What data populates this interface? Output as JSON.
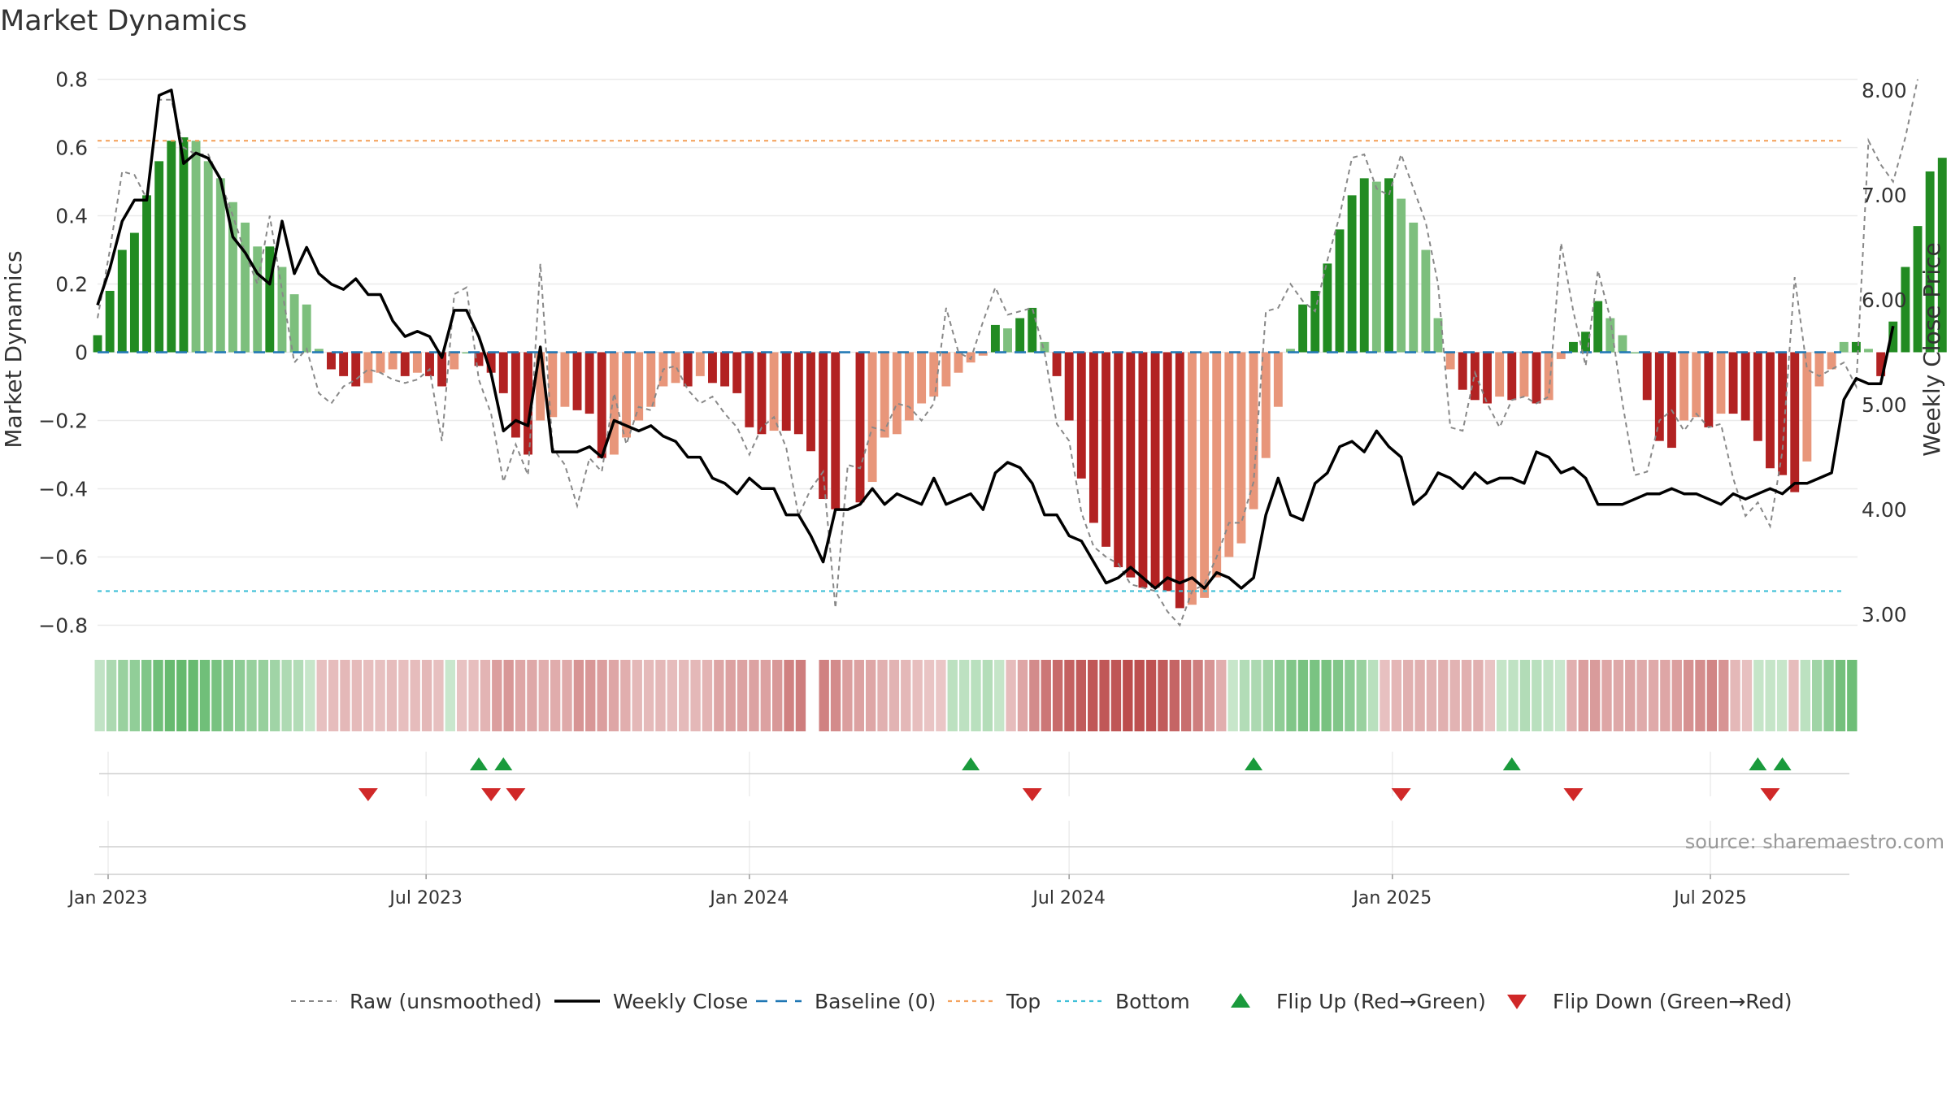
{
  "chart_data": {
    "type": "bar",
    "title": "Market Dynamics",
    "ylabel": "Market Dynamics",
    "y2label": "Weekly Close Price",
    "ylim": [
      -0.83,
      0.83
    ],
    "y2lim": [
      2.8,
      8.2
    ],
    "yticks": [
      "0.8",
      "0.6",
      "0.4",
      "0.2",
      "0",
      "−0.2",
      "−0.4",
      "−0.6",
      "−0.8"
    ],
    "ytick_values": [
      0.8,
      0.6,
      0.4,
      0.2,
      0,
      -0.2,
      -0.4,
      -0.6,
      -0.8
    ],
    "y2ticks": [
      "8.00",
      "7.00",
      "6.00",
      "5.00",
      "4.00",
      "3.00"
    ],
    "y2tick_values": [
      8,
      7,
      6,
      5,
      4,
      3
    ],
    "x_start": "2022-12-26",
    "x_end": "2025-08-25",
    "xticks": [
      "Jan 2023",
      "Jul 2023",
      "Jan 2024",
      "Jul 2024",
      "Jan 2025",
      "Jul 2025"
    ],
    "xtick_dates": [
      "2023-01-01",
      "2023-07-01",
      "2024-01-01",
      "2024-07-01",
      "2025-01-01",
      "2025-07-01"
    ],
    "top_line": 0.62,
    "bottom_line": -0.7,
    "dynamics": [
      0.05,
      0.18,
      0.3,
      0.35,
      0.46,
      0.56,
      0.62,
      0.63,
      0.62,
      0.56,
      0.51,
      0.44,
      0.38,
      0.31,
      0.31,
      0.25,
      0.17,
      0.14,
      0.01,
      -0.05,
      -0.07,
      -0.1,
      -0.09,
      -0.06,
      -0.05,
      -0.07,
      -0.06,
      -0.07,
      -0.1,
      -0.05,
      0.0,
      -0.04,
      -0.06,
      -0.12,
      -0.25,
      -0.3,
      -0.2,
      -0.19,
      -0.16,
      -0.17,
      -0.18,
      -0.31,
      -0.3,
      -0.25,
      -0.2,
      -0.16,
      -0.1,
      -0.09,
      -0.1,
      -0.07,
      -0.09,
      -0.1,
      -0.12,
      -0.22,
      -0.24,
      -0.23,
      -0.23,
      -0.24,
      -0.29,
      -0.43,
      -0.46,
      null,
      -0.44,
      -0.38,
      -0.25,
      -0.24,
      -0.2,
      -0.15,
      -0.13,
      -0.1,
      -0.06,
      -0.03,
      -0.01,
      0.08,
      0.07,
      0.1,
      0.13,
      0.03,
      -0.07,
      -0.2,
      -0.37,
      -0.5,
      -0.57,
      -0.63,
      -0.66,
      -0.69,
      -0.69,
      -0.7,
      -0.75,
      -0.74,
      -0.72,
      -0.66,
      -0.6,
      -0.56,
      -0.46,
      -0.31,
      -0.16,
      0.01,
      0.14,
      0.18,
      0.26,
      0.36,
      0.46,
      0.51,
      0.5,
      0.51,
      0.45,
      0.38,
      0.3,
      0.1,
      -0.05,
      -0.11,
      -0.14,
      -0.15,
      -0.13,
      -0.14,
      -0.13,
      -0.15,
      -0.14,
      -0.02,
      0.03,
      0.06,
      0.15,
      0.1,
      0.05,
      0.0,
      -0.14,
      -0.26,
      -0.28,
      -0.2,
      -0.19,
      -0.22,
      -0.18,
      -0.18,
      -0.2,
      -0.26,
      -0.34,
      -0.36,
      -0.41,
      -0.32,
      -0.1,
      -0.05,
      0.03,
      0.03,
      0.01,
      -0.07,
      0.09,
      0.25,
      0.37,
      0.53,
      0.57
    ],
    "raw": [
      0.1,
      0.3,
      0.53,
      0.52,
      0.45,
      0.74,
      0.74,
      0.6,
      0.58,
      0.58,
      0.5,
      0.4,
      0.29,
      0.2,
      0.4,
      0.18,
      -0.03,
      0.01,
      -0.12,
      -0.15,
      -0.1,
      -0.08,
      -0.05,
      -0.06,
      -0.08,
      -0.09,
      -0.08,
      -0.05,
      -0.26,
      0.17,
      0.19,
      -0.08,
      -0.18,
      -0.38,
      -0.27,
      -0.36,
      0.26,
      -0.28,
      -0.33,
      -0.45,
      -0.31,
      -0.35,
      -0.12,
      -0.27,
      -0.16,
      -0.17,
      -0.05,
      -0.04,
      -0.11,
      -0.15,
      -0.13,
      -0.18,
      -0.22,
      -0.3,
      -0.22,
      -0.19,
      -0.28,
      -0.48,
      -0.4,
      -0.35,
      -0.75,
      -0.33,
      -0.34,
      -0.22,
      -0.23,
      -0.15,
      -0.16,
      -0.2,
      -0.15,
      0.13,
      0.0,
      -0.02,
      0.09,
      0.19,
      0.11,
      0.12,
      0.13,
      0.0,
      -0.21,
      -0.26,
      -0.47,
      -0.57,
      -0.6,
      -0.62,
      -0.68,
      -0.69,
      -0.7,
      -0.76,
      -0.8,
      -0.7,
      -0.68,
      -0.6,
      -0.5,
      -0.5,
      -0.38,
      0.12,
      0.13,
      0.2,
      0.15,
      0.12,
      0.27,
      0.4,
      0.57,
      0.58,
      0.48,
      0.46,
      0.58,
      0.48,
      0.38,
      0.2,
      -0.22,
      -0.23,
      -0.06,
      -0.15,
      -0.22,
      -0.14,
      -0.13,
      -0.15,
      -0.13,
      0.32,
      0.12,
      -0.04,
      0.24,
      0.1,
      -0.15,
      -0.36,
      -0.35,
      -0.2,
      -0.17,
      -0.23,
      -0.18,
      -0.22,
      -0.21,
      -0.37,
      -0.48,
      -0.44,
      -0.51,
      -0.29,
      0.22,
      -0.05,
      -0.07,
      -0.05,
      -0.03,
      -0.1,
      0.62,
      0.55,
      0.5,
      0.63,
      0.8
    ],
    "weekly_close": [
      5.95,
      6.3,
      6.75,
      6.95,
      6.95,
      7.95,
      8.0,
      7.3,
      7.4,
      7.35,
      7.15,
      6.6,
      6.45,
      6.25,
      6.15,
      6.75,
      6.25,
      6.5,
      6.25,
      6.15,
      6.1,
      6.2,
      6.05,
      6.05,
      5.8,
      5.65,
      5.7,
      5.65,
      5.45,
      5.9,
      5.9,
      5.65,
      5.3,
      4.75,
      4.85,
      4.8,
      5.55,
      4.55,
      4.55,
      4.55,
      4.6,
      4.5,
      4.85,
      4.8,
      4.75,
      4.8,
      4.7,
      4.65,
      4.5,
      4.5,
      4.3,
      4.25,
      4.15,
      4.3,
      4.2,
      4.2,
      3.95,
      3.95,
      3.75,
      3.5,
      4.0,
      4.0,
      4.05,
      4.2,
      4.05,
      4.15,
      4.1,
      4.05,
      4.3,
      4.05,
      4.1,
      4.15,
      4.0,
      4.35,
      4.45,
      4.4,
      4.25,
      3.95,
      3.95,
      3.75,
      3.7,
      3.5,
      3.3,
      3.35,
      3.45,
      3.35,
      3.25,
      3.35,
      3.3,
      3.35,
      3.25,
      3.4,
      3.35,
      3.25,
      3.35,
      3.95,
      4.3,
      3.95,
      3.9,
      4.25,
      4.35,
      4.6,
      4.65,
      4.55,
      4.75,
      4.6,
      4.5,
      4.05,
      4.15,
      4.35,
      4.3,
      4.2,
      4.35,
      4.25,
      4.3,
      4.3,
      4.25,
      4.55,
      4.5,
      4.35,
      4.4,
      4.3,
      4.05,
      4.05,
      4.05,
      4.1,
      4.15,
      4.15,
      4.2,
      4.15,
      4.15,
      4.1,
      4.05,
      4.15,
      4.1,
      4.15,
      4.2,
      4.15,
      4.25,
      4.25,
      4.3,
      4.35,
      5.05,
      5.25,
      5.2,
      5.2,
      5.75
    ],
    "flip_up": [
      "2023-07-31",
      "2023-08-14",
      "2024-05-06",
      "2024-10-14",
      "2025-03-10",
      "2025-07-28",
      "2025-08-11"
    ],
    "flip_down": [
      "2023-05-29",
      "2023-08-07",
      "2023-08-21",
      "2024-06-10",
      "2025-01-06",
      "2025-04-14",
      "2025-08-04"
    ],
    "colors": {
      "bull_strong": "#228b22",
      "bull_weak": "#7dbf7d",
      "bear_strong": "#b22222",
      "bear_weak": "#e8967a",
      "top": "#f4a460",
      "bottom": "#40c0d8",
      "baseline": "#1f77b4",
      "raw": "#888888",
      "close": "#000000",
      "flip_up": "#1a9a3c",
      "flip_down": "#d02828"
    },
    "legend": [
      "Raw (unsmoothed)",
      "Weekly Close",
      "Baseline (0)",
      "Top",
      "Bottom",
      "Flip Up (Red→Green)",
      "Flip Down (Green→Red)"
    ],
    "legend_position": "bottom-center",
    "source": "source: sharemaestro.com",
    "grid": true
  }
}
